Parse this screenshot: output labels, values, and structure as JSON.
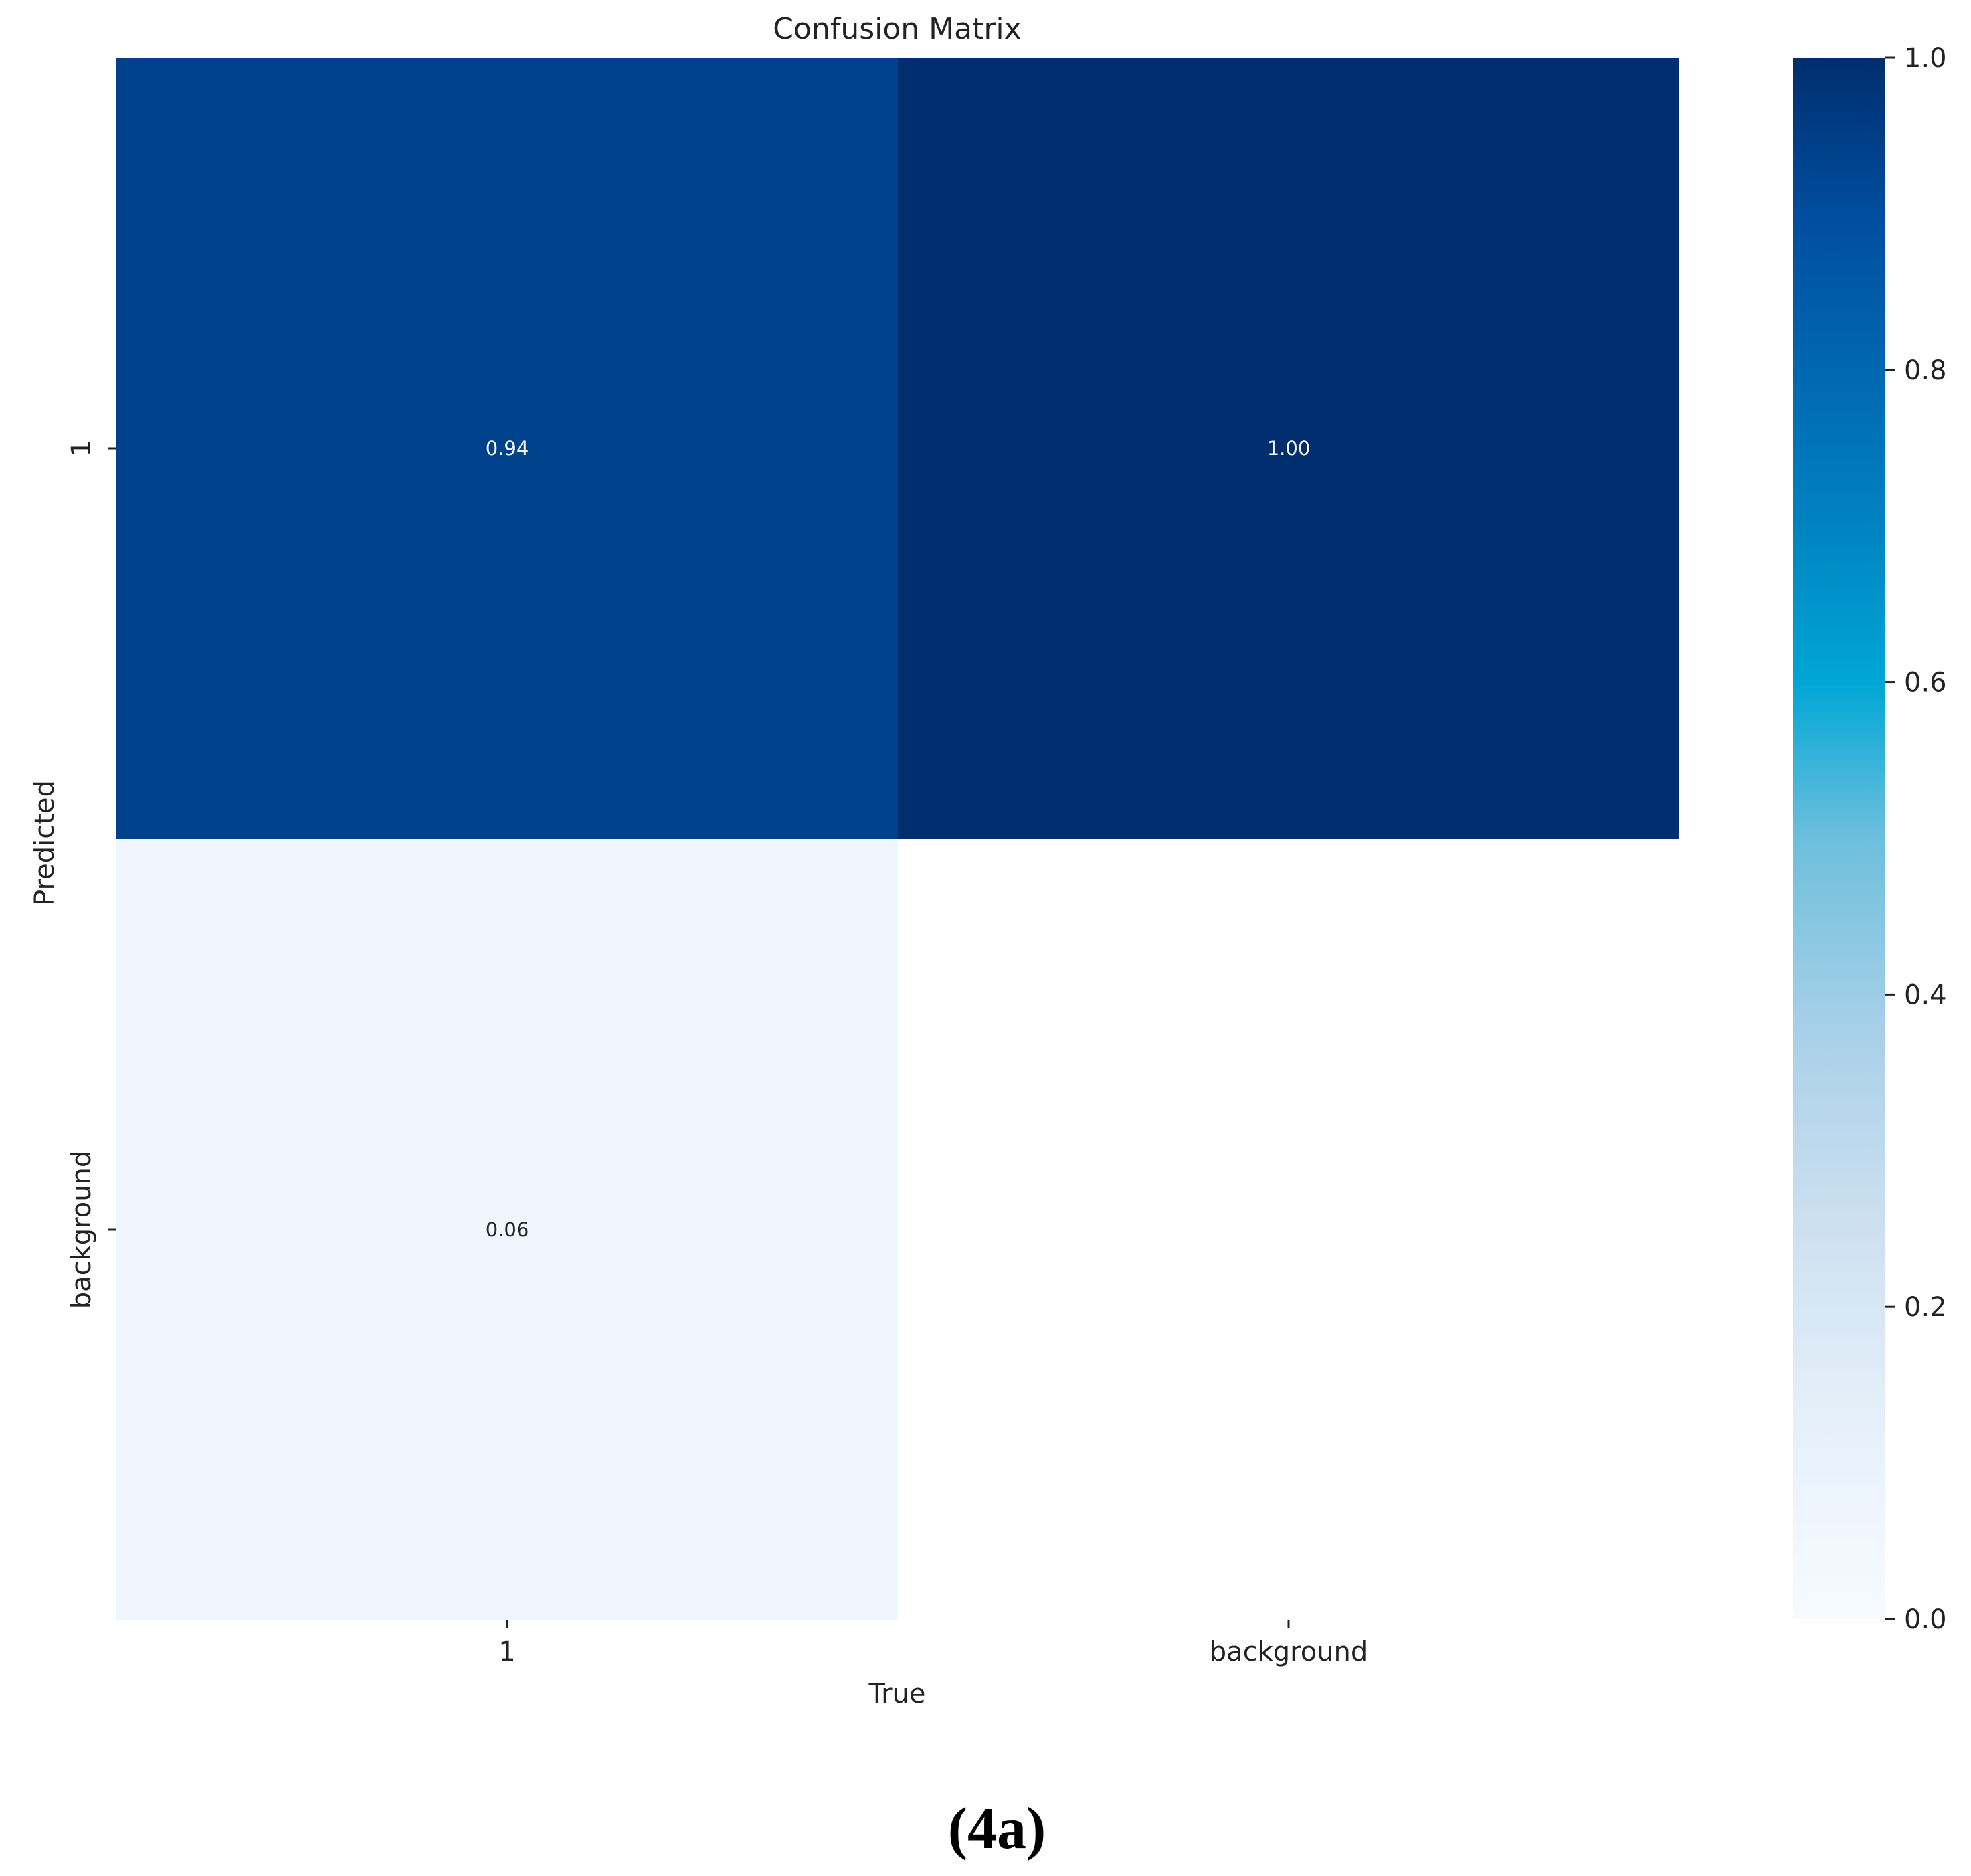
{
  "chart_data": {
    "type": "heatmap",
    "title": "Confusion Matrix",
    "xlabel": "True",
    "ylabel": "Predicted",
    "x_categories": [
      "1",
      "background"
    ],
    "y_categories": [
      "1",
      "background"
    ],
    "values": [
      [
        0.94,
        1.0
      ],
      [
        0.06,
        null
      ]
    ],
    "cell_labels": [
      [
        "0.94",
        "1.00"
      ],
      [
        "0.06",
        ""
      ]
    ],
    "colorbar": {
      "range": [
        0.0,
        1.0
      ],
      "ticks": [
        "0.0",
        "0.2",
        "0.4",
        "0.6",
        "0.8",
        "1.0"
      ],
      "colormap": "Blues"
    },
    "grid": false
  },
  "caption": "(4a)",
  "colors": {
    "cell_label_on_dark": "#ffffff",
    "cell_label_on_light": "#262626",
    "empty_cell": "#ffffff"
  }
}
